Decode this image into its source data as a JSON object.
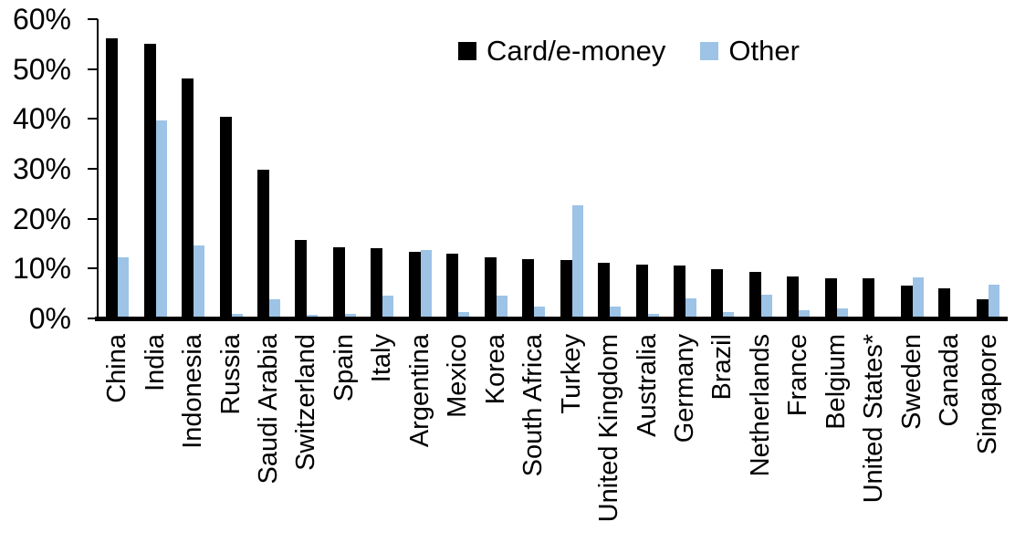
{
  "chart_data": {
    "type": "bar",
    "title": "",
    "xlabel": "",
    "ylabel": "",
    "ylim": [
      0,
      60
    ],
    "ytick_labels": [
      "0%",
      "10%",
      "20%",
      "30%",
      "40%",
      "50%",
      "60%"
    ],
    "grid": false,
    "legend_position": "top-center",
    "categories": [
      "China",
      "India",
      "Indonesia",
      "Russia",
      "Saudi Arabia",
      "Switzerland",
      "Spain",
      "Italy",
      "Argentina",
      "Mexico",
      "Korea",
      "South Africa",
      "Turkey",
      "United Kingdom",
      "Australia",
      "Germany",
      "Brazil",
      "Netherlands",
      "France",
      "Belgium",
      "United States*",
      "Sweden",
      "Canada",
      "Singapore"
    ],
    "series": [
      {
        "name": "Card/e-money",
        "color": "#000000",
        "values": [
          56.2,
          55.0,
          48.2,
          40.4,
          29.8,
          15.7,
          14.2,
          14.0,
          13.4,
          12.9,
          12.2,
          11.8,
          11.7,
          11.1,
          10.8,
          10.7,
          9.9,
          9.3,
          8.5,
          8.0,
          8.0,
          6.6,
          6.0,
          3.9
        ]
      },
      {
        "name": "Other",
        "color": "#9DC3E6",
        "values": [
          12.3,
          39.7,
          14.6,
          1.0,
          3.9,
          0.8,
          1.0,
          4.6,
          13.8,
          1.3,
          4.6,
          2.4,
          22.6,
          2.4,
          1.0,
          4.0,
          1.2,
          4.8,
          1.6,
          2.1,
          0.4,
          8.2,
          0.0,
          6.7
        ]
      }
    ]
  }
}
